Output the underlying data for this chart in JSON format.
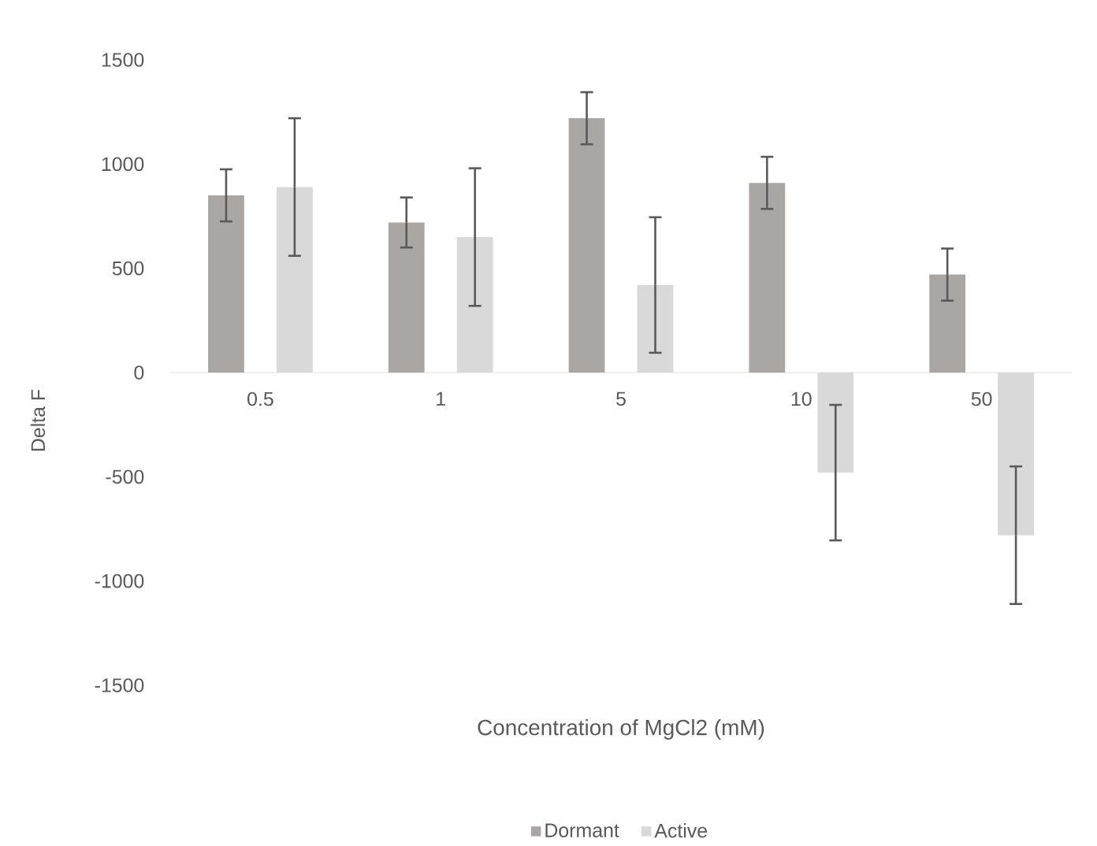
{
  "chart_data": {
    "type": "bar",
    "xlabel": "Concentration of MgCl2 (mM)",
    "ylabel": "Delta F",
    "categories": [
      "0.5",
      "1",
      "5",
      "10",
      "50"
    ],
    "series": [
      {
        "name": "Dormant",
        "color": "#aaa6a4",
        "values": [
          850,
          720,
          1220,
          910,
          470
        ],
        "errors": [
          125,
          120,
          125,
          125,
          125
        ]
      },
      {
        "name": "Active",
        "color": "#d9d9d9",
        "values": [
          890,
          650,
          420,
          -480,
          -780
        ],
        "errors": [
          330,
          330,
          325,
          325,
          330
        ]
      }
    ],
    "ylim": [
      -1500,
      1500
    ],
    "yticks": [
      -1500,
      -1000,
      -500,
      0,
      500,
      1000,
      1500
    ],
    "grid": false,
    "legend": "bottom"
  }
}
